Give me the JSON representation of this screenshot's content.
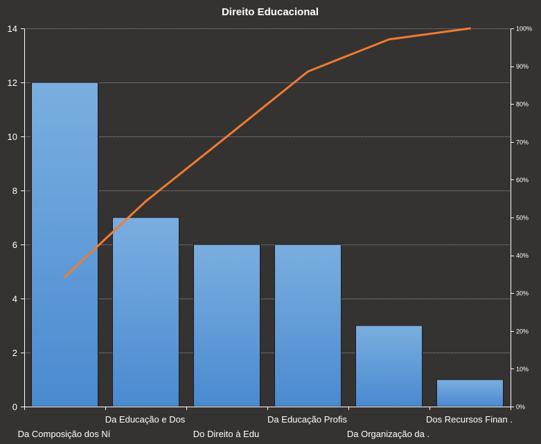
{
  "chart_data": {
    "type": "bar",
    "title": "Direito  Educacional",
    "categories": [
      "Da Composição dos Ní",
      "Da Educação e Dos",
      "Do Direito à Edu",
      "Da Educação Profis",
      "Da Organização da .",
      "Dos Recursos Finan ."
    ],
    "series": [
      {
        "type": "bar",
        "values": [
          12,
          7,
          6,
          6,
          3,
          1
        ]
      },
      {
        "type": "line",
        "axis": "secondary",
        "values": [
          34.3,
          54.3,
          71.4,
          88.6,
          97.1,
          100
        ]
      }
    ],
    "ylim": [
      0,
      14
    ],
    "yticks": [
      "0",
      "2",
      "4",
      "6",
      "8",
      "10",
      "12",
      "14"
    ],
    "y2lim": [
      0,
      100
    ],
    "y2ticks": [
      "0%",
      "10%",
      "20%",
      "30%",
      "40%",
      "50%",
      "60%",
      "70%",
      "80%",
      "90%",
      "100%"
    ],
    "grid": true,
    "colors": {
      "background": "#353232",
      "bar_top": "#7aaee0",
      "bar_bottom": "#4a8ad0",
      "bar_stroke": "#1c1c1c",
      "line": "#f07c30",
      "text": "#ffffff",
      "grid": "#9a9a9a",
      "axis": "#ffffff"
    }
  }
}
